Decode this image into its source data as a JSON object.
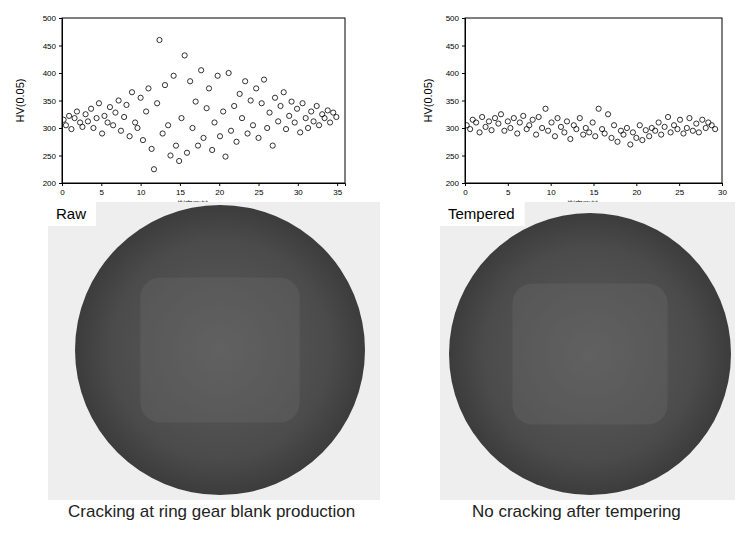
{
  "chart_data": [
    {
      "type": "scatter",
      "ylabel": "HV(0.05)",
      "xlabel": "測定距離 (mm)",
      "xlim": [
        0,
        36
      ],
      "xticks": [
        0,
        5,
        10,
        15,
        20,
        25,
        30,
        35
      ],
      "ylim": [
        200,
        500
      ],
      "yticks": [
        200,
        250,
        300,
        350,
        400,
        450,
        500
      ],
      "grid": false,
      "marker": "circle-open",
      "color": "#000000",
      "x": [
        0.2,
        0.5,
        0.9,
        1.2,
        1.6,
        1.9,
        2.3,
        2.6,
        3.0,
        3.3,
        3.7,
        4.0,
        4.4,
        4.7,
        5.1,
        5.4,
        5.8,
        6.1,
        6.5,
        6.8,
        7.2,
        7.5,
        7.9,
        8.2,
        8.6,
        8.9,
        9.3,
        9.6,
        10.0,
        10.3,
        10.7,
        11.0,
        11.4,
        11.7,
        12.1,
        12.4,
        12.8,
        13.1,
        13.5,
        13.8,
        14.2,
        14.5,
        14.9,
        15.2,
        15.6,
        15.9,
        16.3,
        16.6,
        17.0,
        17.3,
        17.7,
        18.0,
        18.4,
        18.7,
        19.1,
        19.4,
        19.8,
        20.1,
        20.5,
        20.8,
        21.2,
        21.5,
        21.9,
        22.2,
        22.6,
        22.9,
        23.3,
        23.6,
        24.0,
        24.3,
        24.7,
        25.0,
        25.4,
        25.7,
        26.1,
        26.4,
        26.8,
        27.1,
        27.5,
        27.8,
        28.2,
        28.5,
        28.9,
        29.2,
        29.6,
        29.9,
        30.3,
        30.6,
        31.0,
        31.3,
        31.7,
        32.0,
        32.4,
        32.7,
        33.1,
        33.4,
        33.8,
        34.1,
        34.5,
        34.9
      ],
      "values": [
        315,
        305,
        322,
        298,
        318,
        330,
        310,
        302,
        325,
        312,
        335,
        300,
        318,
        345,
        290,
        322,
        310,
        338,
        305,
        328,
        350,
        295,
        320,
        342,
        285,
        365,
        310,
        300,
        355,
        278,
        330,
        372,
        262,
        225,
        345,
        460,
        290,
        378,
        305,
        250,
        395,
        268,
        240,
        318,
        432,
        255,
        385,
        300,
        348,
        268,
        405,
        282,
        336,
        372,
        260,
        310,
        395,
        285,
        330,
        248,
        400,
        295,
        340,
        275,
        362,
        318,
        385,
        290,
        350,
        305,
        372,
        282,
        345,
        388,
        300,
        328,
        268,
        355,
        312,
        340,
        365,
        298,
        322,
        348,
        310,
        335,
        292,
        345,
        318,
        300,
        330,
        312,
        340,
        305,
        325,
        318,
        332,
        310,
        328,
        320
      ]
    },
    {
      "type": "scatter",
      "ylabel": "HV(0.05)",
      "xlabel": "測定距離 (mm)",
      "xlim": [
        0,
        30
      ],
      "xticks": [
        0,
        5,
        10,
        15,
        20,
        25,
        30
      ],
      "ylim": [
        200,
        500
      ],
      "yticks": [
        200,
        250,
        300,
        350,
        400,
        450,
        500
      ],
      "grid": false,
      "marker": "circle-open",
      "color": "#000000",
      "x": [
        0.2,
        0.6,
        0.9,
        1.3,
        1.7,
        2.0,
        2.4,
        2.8,
        3.1,
        3.5,
        3.9,
        4.2,
        4.6,
        5.0,
        5.3,
        5.7,
        6.1,
        6.4,
        6.8,
        7.2,
        7.5,
        7.9,
        8.3,
        8.6,
        9.0,
        9.4,
        9.7,
        10.1,
        10.5,
        10.8,
        11.2,
        11.6,
        11.9,
        12.3,
        12.7,
        13.0,
        13.4,
        13.8,
        14.1,
        14.5,
        14.9,
        15.2,
        15.6,
        16.0,
        16.3,
        16.7,
        17.1,
        17.4,
        17.8,
        18.2,
        18.5,
        18.9,
        19.3,
        19.6,
        20.0,
        20.4,
        20.7,
        21.1,
        21.5,
        21.8,
        22.2,
        22.6,
        22.9,
        23.3,
        23.7,
        24.0,
        24.4,
        24.8,
        25.1,
        25.5,
        25.9,
        26.2,
        26.6,
        27.0,
        27.3,
        27.7,
        28.1,
        28.4,
        28.8,
        29.2
      ],
      "values": [
        305,
        298,
        315,
        310,
        292,
        320,
        302,
        312,
        296,
        318,
        308,
        325,
        295,
        312,
        300,
        318,
        290,
        310,
        322,
        298,
        305,
        315,
        288,
        320,
        300,
        335,
        295,
        310,
        285,
        318,
        302,
        292,
        312,
        280,
        305,
        298,
        318,
        288,
        300,
        292,
        310,
        285,
        335,
        298,
        290,
        325,
        282,
        305,
        275,
        295,
        288,
        300,
        270,
        292,
        282,
        305,
        278,
        296,
        285,
        300,
        295,
        310,
        288,
        302,
        320,
        292,
        305,
        298,
        315,
        290,
        300,
        318,
        295,
        308,
        292,
        315,
        300,
        310,
        305,
        298
      ]
    }
  ],
  "photos": [
    {
      "label": "Raw",
      "caption": "Cracking at ring gear blank production"
    },
    {
      "label": "Tempered",
      "caption": "No cracking after tempering"
    }
  ]
}
